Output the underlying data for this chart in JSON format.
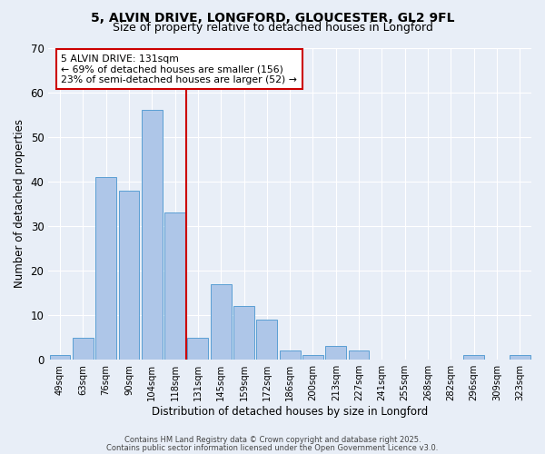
{
  "title_line1": "5, ALVIN DRIVE, LONGFORD, GLOUCESTER, GL2 9FL",
  "title_line2": "Size of property relative to detached houses in Longford",
  "xlabel": "Distribution of detached houses by size in Longford",
  "ylabel": "Number of detached properties",
  "categories": [
    "49sqm",
    "63sqm",
    "76sqm",
    "90sqm",
    "104sqm",
    "118sqm",
    "131sqm",
    "145sqm",
    "159sqm",
    "172sqm",
    "186sqm",
    "200sqm",
    "213sqm",
    "227sqm",
    "241sqm",
    "255sqm",
    "268sqm",
    "282sqm",
    "296sqm",
    "309sqm",
    "323sqm"
  ],
  "values": [
    1,
    5,
    41,
    38,
    56,
    33,
    5,
    17,
    12,
    9,
    2,
    1,
    3,
    2,
    0,
    0,
    0,
    0,
    1,
    0,
    1
  ],
  "bar_color": "#aec6e8",
  "bar_edge_color": "#5a9fd4",
  "vline_index": 5,
  "vline_color": "#cc0000",
  "annotation_title": "5 ALVIN DRIVE: 131sqm",
  "annotation_line1": "← 69% of detached houses are smaller (156)",
  "annotation_line2": "23% of semi-detached houses are larger (52) →",
  "annotation_box_color": "#ffffff",
  "annotation_box_edge": "#cc0000",
  "ylim": [
    0,
    70
  ],
  "yticks": [
    0,
    10,
    20,
    30,
    40,
    50,
    60,
    70
  ],
  "background_color": "#e8eef7",
  "grid_color": "#ffffff",
  "footer_line1": "Contains HM Land Registry data © Crown copyright and database right 2025.",
  "footer_line2": "Contains public sector information licensed under the Open Government Licence v3.0."
}
